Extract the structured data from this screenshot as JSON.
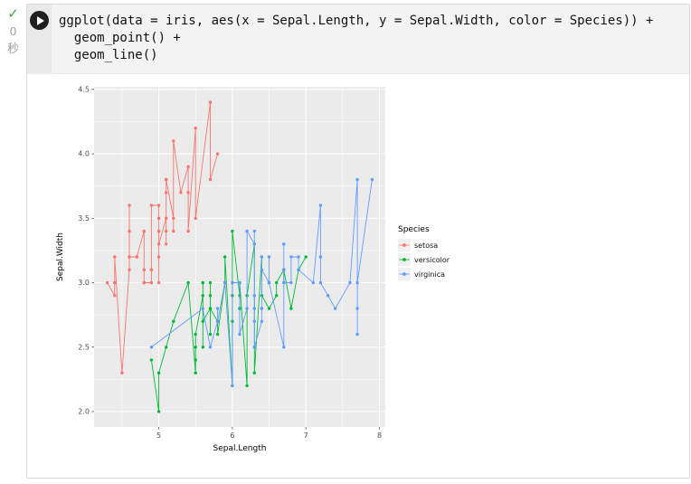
{
  "cell": {
    "status_glyph": "✓",
    "exec_time_value": "0",
    "exec_time_unit": "秒",
    "code_lines": [
      "ggplot(data = iris, aes(x = Sepal.Length, y = Sepal.Width, color = Species)) +",
      "  geom_point() +",
      "  geom_line()"
    ]
  },
  "chart_data": {
    "type": "line",
    "title": "",
    "xlabel": "Sepal.Length",
    "ylabel": "Sepal.Width",
    "xlim": [
      4.12,
      8.08
    ],
    "ylim": [
      1.88,
      4.52
    ],
    "x_ticks": [
      5,
      6,
      7,
      8
    ],
    "x_tick_labels": [
      "5",
      "6",
      "7",
      "8"
    ],
    "x_minor_ticks": [
      4.5,
      5.5,
      6.5,
      7.5
    ],
    "y_ticks": [
      2.0,
      2.5,
      3.0,
      3.5,
      4.0,
      4.5
    ],
    "y_tick_labels": [
      "2.0",
      "2.5",
      "3.0",
      "3.5",
      "4.0",
      "4.5"
    ],
    "y_minor_ticks": [
      2.25,
      2.75,
      3.25,
      3.75,
      4.25
    ],
    "panel_background": "#EBEBEB",
    "grid_color": "#FFFFFF",
    "grid": true,
    "legend": {
      "title": "Species",
      "position": "right"
    },
    "series": [
      {
        "name": "setosa",
        "color": "#F8766D",
        "x": [
          5.1,
          4.9,
          4.7,
          4.6,
          5.0,
          5.4,
          4.6,
          5.0,
          4.4,
          4.9,
          5.4,
          4.8,
          4.8,
          4.3,
          5.8,
          5.7,
          5.4,
          5.1,
          5.7,
          5.1,
          5.4,
          5.1,
          4.6,
          5.1,
          4.8,
          5.0,
          5.0,
          5.2,
          5.2,
          4.7,
          4.8,
          5.4,
          5.2,
          5.5,
          4.9,
          5.0,
          5.5,
          4.9,
          4.4,
          5.1,
          5.0,
          4.5,
          4.4,
          5.0,
          5.1,
          4.8,
          5.1,
          4.6,
          5.3,
          5.0
        ],
        "y": [
          3.5,
          3.0,
          3.2,
          3.1,
          3.6,
          3.9,
          3.4,
          3.4,
          2.9,
          3.1,
          3.7,
          3.4,
          3.0,
          3.0,
          4.0,
          4.4,
          3.9,
          3.5,
          3.8,
          3.8,
          3.4,
          3.7,
          3.6,
          3.3,
          3.4,
          3.0,
          3.4,
          3.5,
          3.4,
          3.2,
          3.1,
          3.4,
          4.1,
          4.2,
          3.1,
          3.2,
          3.5,
          3.6,
          3.0,
          3.4,
          3.5,
          2.3,
          3.2,
          3.5,
          3.8,
          3.0,
          3.8,
          3.2,
          3.7,
          3.3
        ]
      },
      {
        "name": "versicolor",
        "color": "#00BA38",
        "x": [
          7.0,
          6.4,
          6.9,
          5.5,
          6.5,
          5.7,
          6.3,
          4.9,
          6.6,
          5.2,
          5.0,
          5.9,
          6.0,
          6.1,
          5.6,
          6.7,
          5.6,
          5.8,
          6.2,
          5.6,
          5.9,
          6.1,
          6.3,
          6.1,
          6.4,
          6.6,
          6.8,
          6.7,
          6.0,
          5.7,
          5.5,
          5.5,
          5.8,
          6.0,
          5.4,
          6.0,
          6.7,
          6.3,
          5.6,
          5.5,
          5.5,
          6.1,
          5.8,
          5.0,
          5.6,
          5.7,
          5.7,
          6.2,
          5.1,
          5.7
        ],
        "y": [
          3.2,
          3.2,
          3.1,
          2.3,
          2.8,
          2.8,
          3.3,
          2.4,
          2.9,
          2.7,
          2.0,
          3.0,
          2.2,
          2.9,
          2.9,
          3.1,
          3.0,
          2.7,
          2.2,
          2.5,
          3.2,
          2.8,
          2.5,
          2.8,
          2.9,
          3.0,
          2.8,
          3.0,
          2.9,
          2.6,
          2.4,
          2.4,
          2.7,
          2.7,
          3.0,
          3.4,
          3.1,
          2.3,
          3.0,
          2.5,
          2.6,
          3.0,
          2.6,
          2.3,
          2.7,
          3.0,
          2.9,
          2.9,
          2.5,
          2.8
        ]
      },
      {
        "name": "virginica",
        "color": "#619CFF",
        "x": [
          6.3,
          5.8,
          7.1,
          6.3,
          6.5,
          7.6,
          4.9,
          7.3,
          6.7,
          7.2,
          6.5,
          6.4,
          6.8,
          5.7,
          5.8,
          6.4,
          6.5,
          7.7,
          7.7,
          6.0,
          6.9,
          5.6,
          7.7,
          6.3,
          6.7,
          7.2,
          6.2,
          6.1,
          6.4,
          7.2,
          7.4,
          7.9,
          6.4,
          6.3,
          6.1,
          7.7,
          6.3,
          6.4,
          6.0,
          6.9,
          6.7,
          6.9,
          5.8,
          6.8,
          6.7,
          6.7,
          6.3,
          6.5,
          6.2,
          5.9
        ],
        "y": [
          3.3,
          2.7,
          3.0,
          2.9,
          3.0,
          3.0,
          2.5,
          2.9,
          2.5,
          3.6,
          3.2,
          2.7,
          3.0,
          2.5,
          2.8,
          3.2,
          3.0,
          3.8,
          2.6,
          2.2,
          3.2,
          2.8,
          2.8,
          2.7,
          3.3,
          3.2,
          2.8,
          3.0,
          2.8,
          3.0,
          2.8,
          3.8,
          2.8,
          2.8,
          2.6,
          3.0,
          3.4,
          3.1,
          3.0,
          3.1,
          3.1,
          3.1,
          2.7,
          3.2,
          3.3,
          3.0,
          2.5,
          3.0,
          3.4,
          3.0
        ]
      }
    ]
  }
}
